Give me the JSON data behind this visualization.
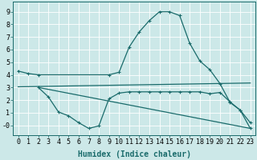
{
  "xlabel": "Humidex (Indice chaleur)",
  "xlim": [
    -0.5,
    23.5
  ],
  "ylim": [
    -0.8,
    9.8
  ],
  "xticks": [
    0,
    1,
    2,
    3,
    4,
    5,
    6,
    7,
    8,
    9,
    10,
    11,
    12,
    13,
    14,
    15,
    16,
    17,
    18,
    19,
    20,
    21,
    22,
    23
  ],
  "yticks": [
    0,
    1,
    2,
    3,
    4,
    5,
    6,
    7,
    8,
    9
  ],
  "ytick_labels": [
    "-0",
    "1",
    "2",
    "3",
    "4",
    "5",
    "6",
    "7",
    "8",
    "9"
  ],
  "bg_color": "#cce8e8",
  "grid_color": "#b8d8d8",
  "line_color": "#1a6b6b",
  "line1_x": [
    0,
    1,
    2,
    9,
    10,
    11,
    12,
    13,
    14,
    15,
    16,
    17,
    18,
    19,
    20,
    21,
    22,
    23
  ],
  "line1_y": [
    4.3,
    4.1,
    4.0,
    4.0,
    4.2,
    6.2,
    7.4,
    8.3,
    9.0,
    9.0,
    8.7,
    6.5,
    5.1,
    4.4,
    3.3,
    1.8,
    1.2,
    0.2
  ],
  "line2_x": [
    0,
    23
  ],
  "line2_y": [
    3.05,
    3.35
  ],
  "line3_x": [
    2,
    3,
    4,
    5,
    6,
    7,
    8,
    9,
    10,
    11,
    12,
    13,
    14,
    15,
    16,
    17,
    18,
    19,
    20,
    21,
    22,
    23
  ],
  "line3_y": [
    3.0,
    2.25,
    1.05,
    0.75,
    0.2,
    -0.25,
    -0.05,
    2.1,
    2.55,
    2.65,
    2.65,
    2.65,
    2.65,
    2.65,
    2.65,
    2.65,
    2.65,
    2.5,
    2.6,
    1.85,
    1.2,
    -0.25
  ],
  "line4_x": [
    2,
    23
  ],
  "line4_y": [
    3.0,
    -0.25
  ],
  "tick_fontsize": 6,
  "label_fontsize": 7,
  "marker_size": 3
}
